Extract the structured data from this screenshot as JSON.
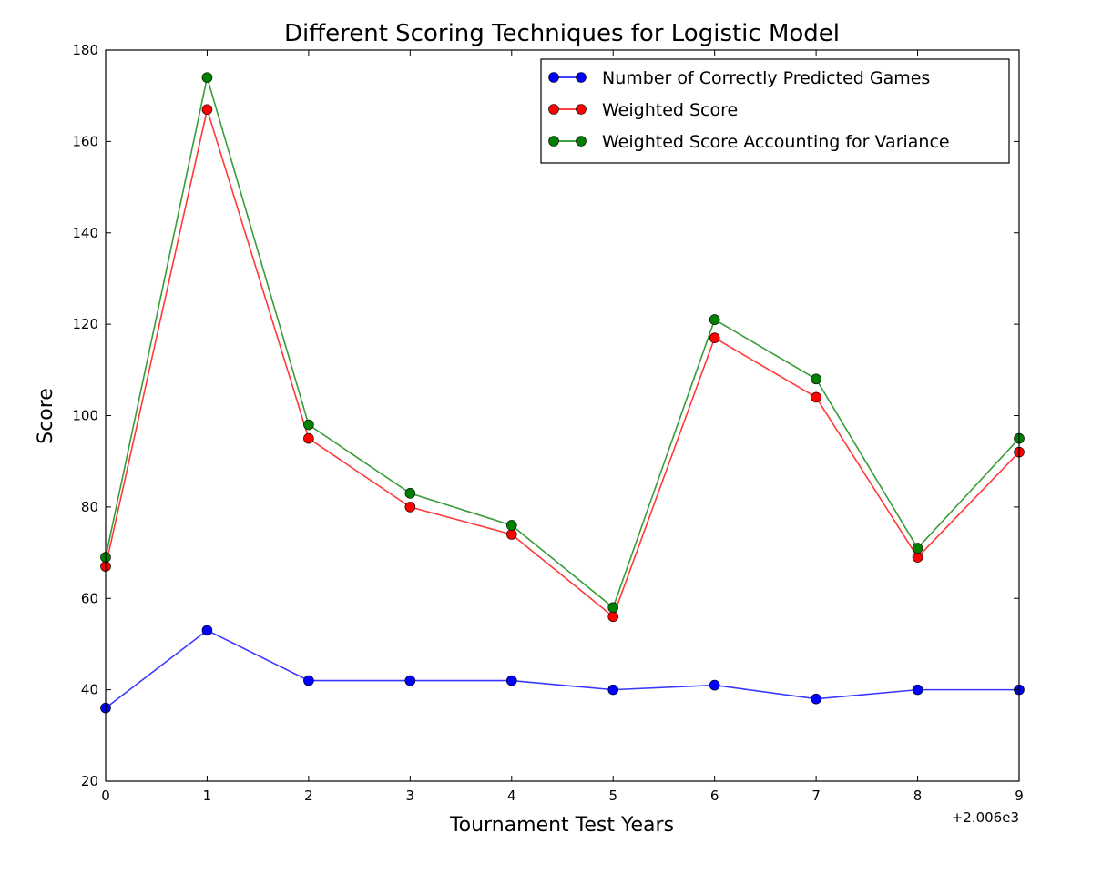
{
  "chart_data": {
    "type": "line",
    "title": "Different Scoring Techniques for Logistic Model",
    "xlabel": "Tournament Test Years",
    "ylabel": "Score",
    "x_offset_label": "+2.006e3",
    "x": [
      0,
      1,
      2,
      3,
      4,
      5,
      6,
      7,
      8,
      9
    ],
    "xlim": [
      0,
      9
    ],
    "ylim": [
      20,
      180
    ],
    "x_ticks": [
      "0",
      "1",
      "2",
      "3",
      "4",
      "5",
      "6",
      "7",
      "8",
      "9"
    ],
    "y_ticks": [
      "20",
      "40",
      "60",
      "80",
      "100",
      "120",
      "140",
      "160",
      "180"
    ],
    "grid": false,
    "legend_position": "top-right",
    "series": [
      {
        "name": "Number of Correctly Predicted Games",
        "color": "#0000ff",
        "values": [
          36,
          53,
          42,
          42,
          42,
          40,
          41,
          38,
          40,
          40
        ]
      },
      {
        "name": "Weighted Score",
        "color": "#ff0000",
        "values": [
          67,
          167,
          95,
          80,
          74,
          56,
          117,
          104,
          69,
          92
        ]
      },
      {
        "name": "Weighted Score Accounting for Variance",
        "color": "#008000",
        "values": [
          69,
          174,
          98,
          83,
          76,
          58,
          121,
          108,
          71,
          95
        ]
      }
    ]
  }
}
